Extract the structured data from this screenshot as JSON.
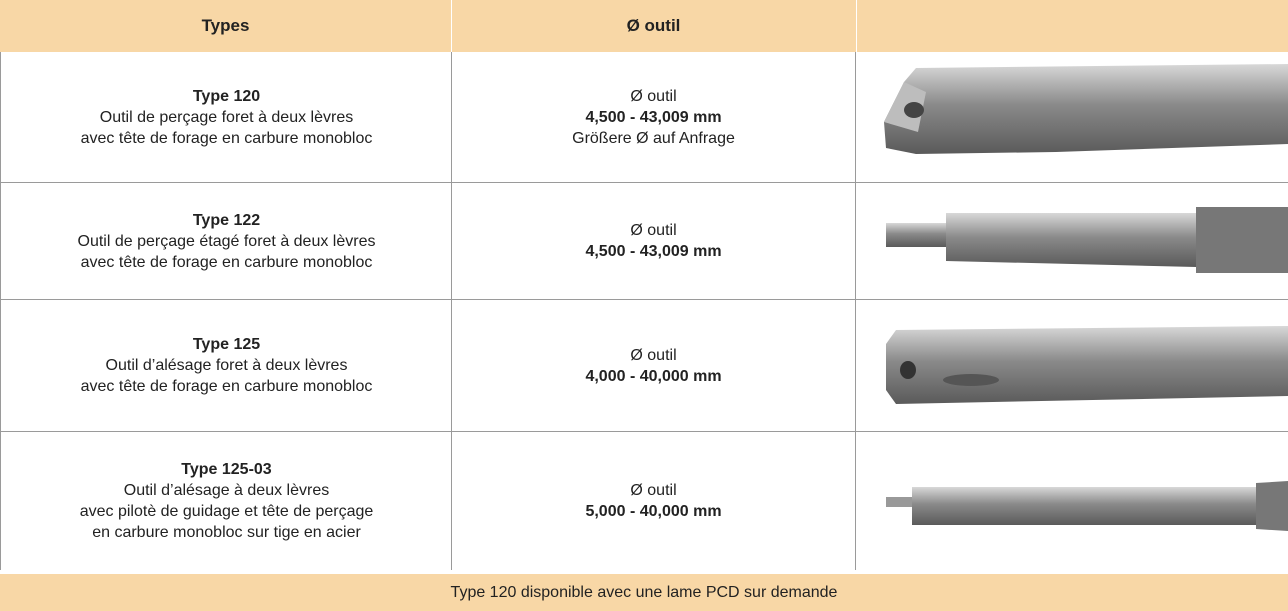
{
  "header": {
    "types": "Types",
    "diameter": "Ø outil"
  },
  "rows": [
    {
      "type": "Type 120",
      "description": [
        "Outil de perçage foret à deux lèvres",
        "avec tête de forage en carbure monobloc"
      ],
      "diameter": {
        "label": "Ø outil",
        "range": "4,500 - 43,009 mm",
        "note": "Größere Ø auf Anfrage"
      }
    },
    {
      "type": "Type 122",
      "description": [
        "Outil de perçage étagé foret à deux lèvres",
        "avec tête de forage en carbure monobloc"
      ],
      "diameter": {
        "label": "Ø outil",
        "range": "4,500 - 43,009 mm"
      }
    },
    {
      "type": "Type 125",
      "description": [
        "Outil d’alésage foret à deux lèvres",
        "avec tête de forage en carbure monobloc"
      ],
      "diameter": {
        "label": "Ø outil",
        "range": "4,000 - 40,000 mm"
      }
    },
    {
      "type": "Type 125-03",
      "description": [
        "Outil d’alésage à deux lèvres",
        "avec pilotè de guidage et tête de perçage",
        "en carbure monobloc sur tige en acier"
      ],
      "diameter": {
        "label": "Ø outil",
        "range": "5,000 - 40,000 mm"
      }
    }
  ],
  "footer": "Type 120 disponible avec une lame PCD sur demande"
}
